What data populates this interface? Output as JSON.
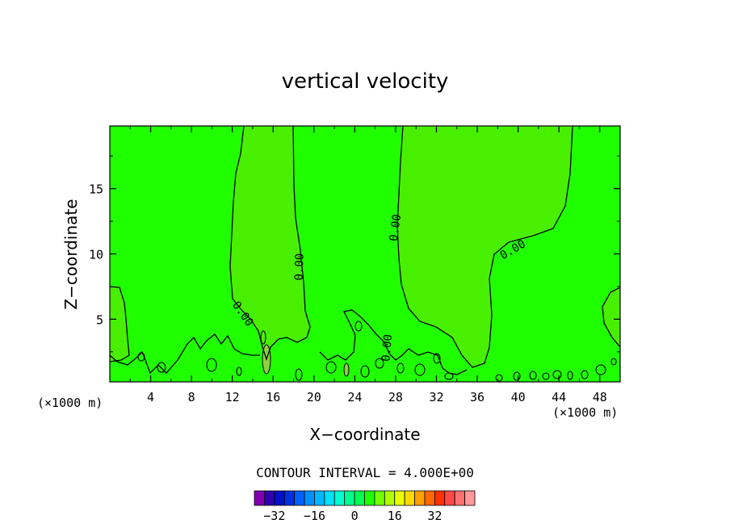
{
  "chart_data": {
    "type": "contour",
    "title": "vertical velocity",
    "xlabel": "X−coordinate",
    "ylabel": "Z−coordinate",
    "x_unit_left": "(×1000 m)",
    "x_unit_right": "(×1000 m)",
    "xlim": [
      0,
      50
    ],
    "ylim": [
      0.2,
      19.8
    ],
    "x_ticks": [
      4,
      8,
      12,
      16,
      20,
      24,
      28,
      32,
      36,
      40,
      44,
      48
    ],
    "x_tick_labels": [
      "4",
      "8",
      "12",
      "16",
      "20",
      "24",
      "28",
      "32",
      "36",
      "40",
      "44",
      "48"
    ],
    "y_ticks": [
      5,
      10,
      15
    ],
    "y_tick_labels": [
      "5",
      "10",
      "15"
    ],
    "contour_labels": [
      {
        "text": "0.00",
        "x": 18.6,
        "y": 9.0,
        "angle": -88
      },
      {
        "text": "0.00",
        "x": 28.0,
        "y": 12.0,
        "angle": -82
      },
      {
        "text": "0.00",
        "x": 39.5,
        "y": 10.3,
        "angle": -30
      },
      {
        "text": "0.00",
        "x": 13.0,
        "y": 5.4,
        "angle": 55
      },
      {
        "text": "0.00",
        "x": 27.2,
        "y": 2.8,
        "angle": -85
      }
    ],
    "contour_interval_text": "CONTOUR INTERVAL = 4.000E+00",
    "colorbar": {
      "tick_values": [
        -32,
        -16,
        0,
        16,
        32
      ],
      "tick_labels": [
        "−32",
        "−16",
        "0",
        "16",
        "32"
      ],
      "colors": [
        "#8000b0",
        "#3000b0",
        "#0010c8",
        "#0030e0",
        "#0060ff",
        "#0090ff",
        "#00b8ff",
        "#00e0ff",
        "#00ffd0",
        "#00ff90",
        "#00ff50",
        "#20ff00",
        "#70ff00",
        "#b0ff00",
        "#e8ff00",
        "#ffd800",
        "#ffa000",
        "#ff6800",
        "#ff3000",
        "#ff4848",
        "#ff7070",
        "#ff9898"
      ]
    },
    "background_color": "#20ff00",
    "upward_region_color": "#48f000"
  }
}
